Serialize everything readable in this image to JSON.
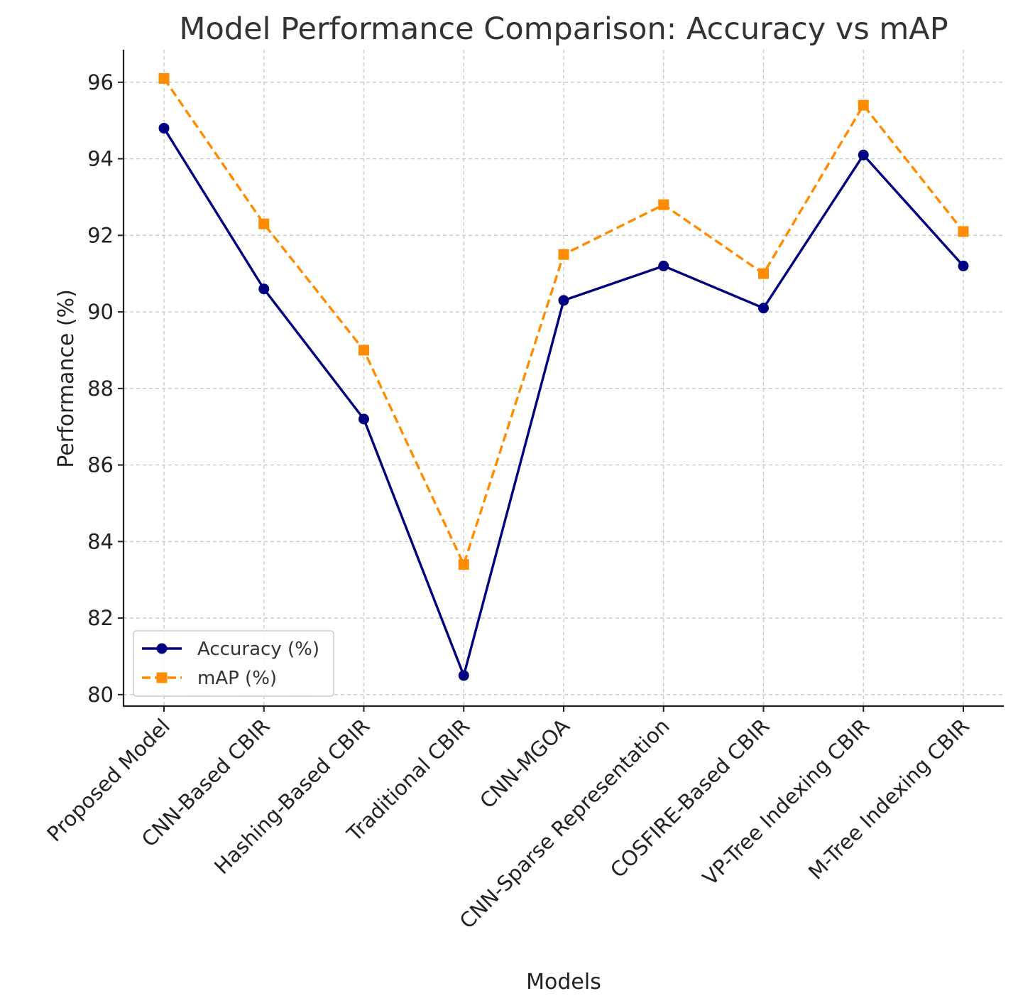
{
  "chart_data": {
    "type": "line",
    "title": "Model Performance Comparison: Accuracy vs mAP",
    "xlabel": "Models",
    "ylabel": "Performance (%)",
    "categories": [
      "Proposed Model",
      "CNN-Based CBIR",
      "Hashing-Based CBIR",
      "Traditional CBIR",
      "CNN-MGOA",
      "CNN-Sparse Representation",
      "COSFIRE-Based CBIR",
      "VP-Tree Indexing CBIR",
      "M-Tree Indexing CBIR"
    ],
    "series": [
      {
        "name": "Accuracy (%)",
        "values": [
          94.8,
          90.6,
          87.2,
          80.5,
          90.3,
          91.2,
          90.1,
          94.1,
          91.2
        ],
        "color": "#000080",
        "marker": "circle",
        "line_style": "solid"
      },
      {
        "name": "mAP (%)",
        "values": [
          96.1,
          92.3,
          89.0,
          83.4,
          91.5,
          92.8,
          91.0,
          95.4,
          92.1
        ],
        "color": "#ff8c00",
        "marker": "square",
        "line_style": "dashed"
      }
    ],
    "yticks": [
      80,
      82,
      84,
      86,
      88,
      90,
      92,
      94,
      96
    ],
    "ylim": [
      79.7,
      96.85
    ],
    "grid": true,
    "legend_position": "lower-left"
  }
}
